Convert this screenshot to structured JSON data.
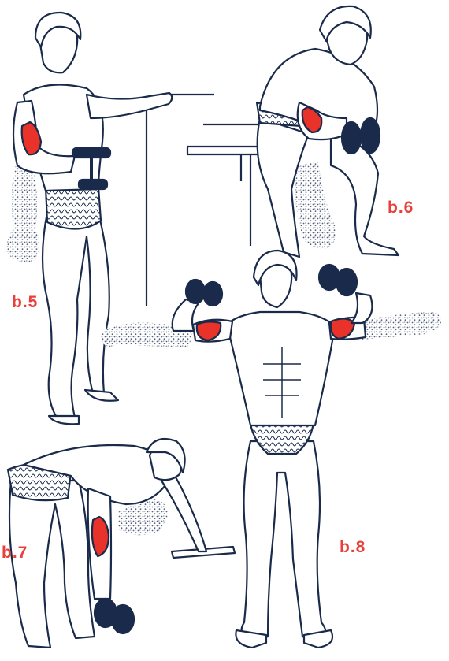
{
  "labels": {
    "b5": "b.5",
    "b6": "b.6",
    "b7": "b.7",
    "b8": "b.8"
  },
  "colors": {
    "ink": "#1a2a4a",
    "muscle": "#e8322a",
    "label": "#e8403a",
    "skin": "#ffffff",
    "stipple": "#8a96b0"
  }
}
